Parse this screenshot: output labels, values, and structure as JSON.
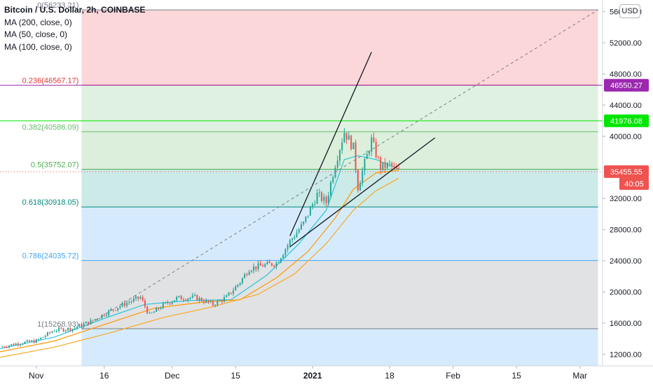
{
  "header": {
    "title": "Bitcoin / U.S. Dollar, 2h, COINBASE",
    "indicators": [
      "MA (200, close, 0)",
      "MA (50, close, 0)",
      "MA (100, close, 0)"
    ],
    "currency": "USD"
  },
  "colors": {
    "fib_0_236": "#e53935",
    "fib_0_382": "#66bb6a",
    "fib_0_5": "#4caf50",
    "fib_0_618": "#00897b",
    "fib_0_786": "#42a5f5",
    "fib_1": "#787b86",
    "ma200": "#f9a825",
    "ma50": "#26c6da",
    "ma100": "#ff9800",
    "candle_up": "#26a69a",
    "candle_down": "#ef5350"
  },
  "chart_data": {
    "type": "candlestick",
    "y_range": [
      10500,
      57500
    ],
    "y_ticks": [
      "56000.00",
      "52000.00",
      "48000.00",
      "44000.00",
      "40000.00",
      "32000.00",
      "28000.00",
      "24000.00",
      "20000.00",
      "16000.00",
      "12000.00"
    ],
    "x_labels": [
      {
        "label": "Nov",
        "date": "2020-11-01"
      },
      {
        "label": "16",
        "date": "2020-11-16"
      },
      {
        "label": "Dec",
        "date": "2020-12-01"
      },
      {
        "label": "15",
        "date": "2020-12-15"
      },
      {
        "label": "2021",
        "date": "2021-01-01"
      },
      {
        "label": "18",
        "date": "2021-01-18"
      },
      {
        "label": "Feb",
        "date": "2021-02-01"
      },
      {
        "label": "15",
        "date": "2021-02-15"
      },
      {
        "label": "Mar",
        "date": "2021-03-01"
      }
    ],
    "x_range": [
      "2020-10-24",
      "2021-03-06"
    ],
    "fib_start": "2020-11-11",
    "fib_end": "2021-03-05",
    "fib_levels": [
      {
        "label": "0(56233.21)",
        "price": 56233.21
      },
      {
        "label": "0.236(46567.17)",
        "price": 46567.17
      },
      {
        "label": "0.382(40586.09)",
        "price": 40586.09
      },
      {
        "label": "0.5(35752.07)",
        "price": 35752.07
      },
      {
        "label": "0.618(30918.05)",
        "price": 30918.05
      },
      {
        "label": "0.786(24035.72)",
        "price": 24035.72
      },
      {
        "label": "1(15268.93)",
        "price": 15268.93
      }
    ],
    "price_badges": [
      {
        "label": "46550.27",
        "price": 46550.27,
        "color": "#9c27b0"
      },
      {
        "label": "41976.08",
        "price": 41976.08,
        "color": "#00e600"
      },
      {
        "label": "35455.55",
        "price": 35455.55,
        "color": "#ef5350"
      }
    ],
    "countdown": "40:05",
    "price_series": [
      {
        "date": "2020-10-24",
        "price": 12900
      },
      {
        "date": "2020-10-28",
        "price": 13400
      },
      {
        "date": "2020-11-01",
        "price": 13700
      },
      {
        "date": "2020-11-05",
        "price": 15100
      },
      {
        "date": "2020-11-09",
        "price": 15300
      },
      {
        "date": "2020-11-13",
        "price": 16200
      },
      {
        "date": "2020-11-17",
        "price": 17500
      },
      {
        "date": "2020-11-21",
        "price": 18600
      },
      {
        "date": "2020-11-24",
        "price": 19300
      },
      {
        "date": "2020-11-26",
        "price": 17000
      },
      {
        "date": "2020-11-29",
        "price": 18300
      },
      {
        "date": "2020-12-02",
        "price": 19200
      },
      {
        "date": "2020-12-06",
        "price": 19300
      },
      {
        "date": "2020-12-10",
        "price": 18400
      },
      {
        "date": "2020-12-13",
        "price": 19300
      },
      {
        "date": "2020-12-16",
        "price": 21300
      },
      {
        "date": "2020-12-18",
        "price": 23000
      },
      {
        "date": "2020-12-21",
        "price": 23400
      },
      {
        "date": "2020-12-24",
        "price": 23700
      },
      {
        "date": "2020-12-27",
        "price": 26500
      },
      {
        "date": "2020-12-30",
        "price": 28800
      },
      {
        "date": "2021-01-02",
        "price": 32500
      },
      {
        "date": "2021-01-04",
        "price": 31500
      },
      {
        "date": "2021-01-06",
        "price": 36500
      },
      {
        "date": "2021-01-08",
        "price": 40600
      },
      {
        "date": "2021-01-10",
        "price": 38500
      },
      {
        "date": "2021-01-11",
        "price": 33500
      },
      {
        "date": "2021-01-13",
        "price": 37500
      },
      {
        "date": "2021-01-14",
        "price": 39500
      },
      {
        "date": "2021-01-16",
        "price": 36000
      },
      {
        "date": "2021-01-18",
        "price": 36300
      },
      {
        "date": "2021-01-19",
        "price": 35800
      },
      {
        "date": "2021-01-20",
        "price": 35455.55
      }
    ],
    "moving_averages": [
      {
        "name": "MA (50, close, 0)",
        "color": "#26c6da",
        "points": [
          {
            "date": "2020-10-24",
            "price": 12700
          },
          {
            "date": "2020-11-05",
            "price": 14200
          },
          {
            "date": "2020-11-17",
            "price": 16800
          },
          {
            "date": "2020-11-25",
            "price": 18400
          },
          {
            "date": "2020-12-05",
            "price": 18900
          },
          {
            "date": "2020-12-14",
            "price": 19000
          },
          {
            "date": "2020-12-22",
            "price": 22200
          },
          {
            "date": "2020-12-29",
            "price": 26200
          },
          {
            "date": "2021-01-04",
            "price": 30500
          },
          {
            "date": "2021-01-08",
            "price": 37000
          },
          {
            "date": "2021-01-11",
            "price": 37500
          },
          {
            "date": "2021-01-15",
            "price": 37000
          },
          {
            "date": "2021-01-20",
            "price": 35800
          }
        ]
      },
      {
        "name": "MA (100, close, 0)",
        "color": "#ff9800",
        "points": [
          {
            "date": "2020-10-24",
            "price": 12300
          },
          {
            "date": "2020-11-05",
            "price": 13700
          },
          {
            "date": "2020-11-17",
            "price": 16000
          },
          {
            "date": "2020-11-27",
            "price": 17900
          },
          {
            "date": "2020-12-08",
            "price": 18700
          },
          {
            "date": "2020-12-16",
            "price": 19000
          },
          {
            "date": "2020-12-24",
            "price": 21800
          },
          {
            "date": "2020-12-31",
            "price": 25200
          },
          {
            "date": "2021-01-06",
            "price": 29500
          },
          {
            "date": "2021-01-10",
            "price": 33200
          },
          {
            "date": "2021-01-15",
            "price": 35300
          },
          {
            "date": "2021-01-20",
            "price": 35600
          }
        ]
      },
      {
        "name": "MA (200, close, 0)",
        "color": "#f9a825",
        "points": [
          {
            "date": "2020-10-24",
            "price": 11600
          },
          {
            "date": "2020-11-05",
            "price": 12900
          },
          {
            "date": "2020-11-17",
            "price": 14700
          },
          {
            "date": "2020-11-29",
            "price": 16700
          },
          {
            "date": "2020-12-10",
            "price": 18100
          },
          {
            "date": "2020-12-20",
            "price": 19700
          },
          {
            "date": "2020-12-28",
            "price": 22300
          },
          {
            "date": "2021-01-04",
            "price": 26200
          },
          {
            "date": "2021-01-10",
            "price": 30500
          },
          {
            "date": "2021-01-15",
            "price": 33000
          },
          {
            "date": "2021-01-20",
            "price": 34600
          }
        ]
      }
    ],
    "trendlines": [
      {
        "name": "wedge-upper-line",
        "from": {
          "date": "2020-12-27",
          "price": 27200
        },
        "to": {
          "date": "2021-01-14",
          "price": 50800
        },
        "style": "solid"
      },
      {
        "name": "wedge-lower-line",
        "from": {
          "date": "2020-12-27",
          "price": 25800
        },
        "to": {
          "date": "2021-01-28",
          "price": 39800
        },
        "style": "solid"
      },
      {
        "name": "fib-diagonal-line",
        "from": {
          "date": "2020-11-11",
          "price": 15268.93
        },
        "to": {
          "date": "2021-03-05",
          "price": 56233.21
        },
        "style": "dashed"
      }
    ]
  }
}
